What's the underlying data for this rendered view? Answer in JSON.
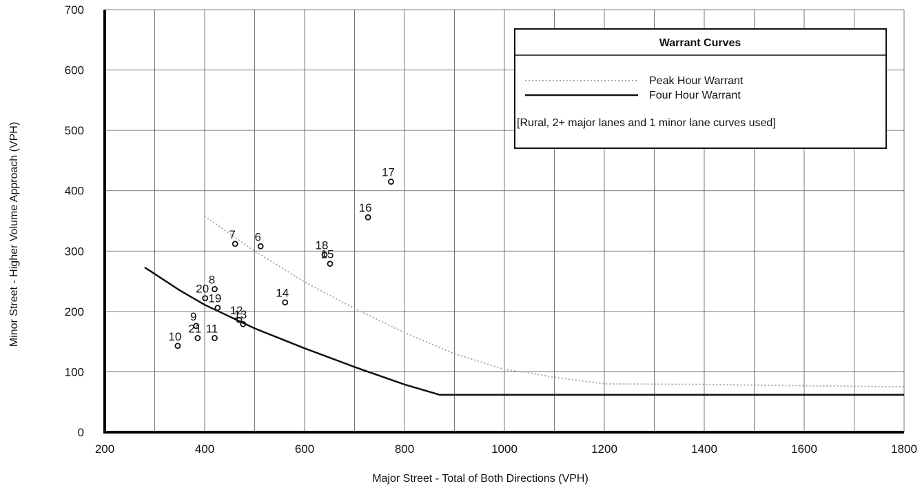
{
  "chart_data": {
    "type": "scatter",
    "xlabel": "Major Street - Total of Both Directions (VPH)",
    "ylabel": "Minor Street - Higher Volume Approach (VPH)",
    "xlim": [
      200,
      1800
    ],
    "ylim": [
      0,
      700
    ],
    "x_ticks": [
      200,
      400,
      600,
      800,
      1000,
      1200,
      1400,
      1600,
      1800
    ],
    "y_ticks": [
      0,
      100,
      200,
      300,
      400,
      500,
      600,
      700
    ],
    "grid": true,
    "legend": {
      "title": "Warrant Curves",
      "placement": "top-right",
      "entries": [
        {
          "name": "Peak Hour Warrant",
          "style": "dotted-gray"
        },
        {
          "name": "Four Hour Warrant",
          "style": "solid-black"
        }
      ],
      "note": "[Rural,  2+ major lanes and 1 minor lane curves used]"
    },
    "points": [
      {
        "label": "6",
        "x": 512,
        "y": 308
      },
      {
        "label": "7",
        "x": 461,
        "y": 312
      },
      {
        "label": "8",
        "x": 420,
        "y": 237
      },
      {
        "label": "9",
        "x": 383,
        "y": 176
      },
      {
        "label": "10",
        "x": 346,
        "y": 143
      },
      {
        "label": "11",
        "x": 420,
        "y": 156
      },
      {
        "label": "12",
        "x": 469,
        "y": 186
      },
      {
        "label": "13",
        "x": 477,
        "y": 179
      },
      {
        "label": "14",
        "x": 561,
        "y": 215
      },
      {
        "label": "15",
        "x": 651,
        "y": 279
      },
      {
        "label": "16",
        "x": 727,
        "y": 356
      },
      {
        "label": "17",
        "x": 773,
        "y": 415
      },
      {
        "label": "18",
        "x": 640,
        "y": 294
      },
      {
        "label": "19",
        "x": 426,
        "y": 206
      },
      {
        "label": "20",
        "x": 401,
        "y": 222
      },
      {
        "label": "21",
        "x": 386,
        "y": 156
      }
    ],
    "series": [
      {
        "name": "Peak Hour Warrant",
        "color": "#a8a8a8",
        "points": [
          [
            400,
            358
          ],
          [
            500,
            300
          ],
          [
            600,
            249
          ],
          [
            700,
            205
          ],
          [
            800,
            165
          ],
          [
            900,
            130
          ],
          [
            1000,
            104
          ],
          [
            1050,
            98
          ],
          [
            1100,
            91
          ],
          [
            1200,
            80
          ],
          [
            1400,
            79
          ],
          [
            1600,
            77
          ],
          [
            1800,
            75
          ]
        ]
      },
      {
        "name": "Four Hour Warrant",
        "color": "#111111",
        "points": [
          [
            280,
            273
          ],
          [
            350,
            235
          ],
          [
            400,
            211
          ],
          [
            500,
            172
          ],
          [
            600,
            139
          ],
          [
            700,
            108
          ],
          [
            800,
            79
          ],
          [
            870,
            62
          ],
          [
            1800,
            62
          ]
        ]
      }
    ]
  }
}
